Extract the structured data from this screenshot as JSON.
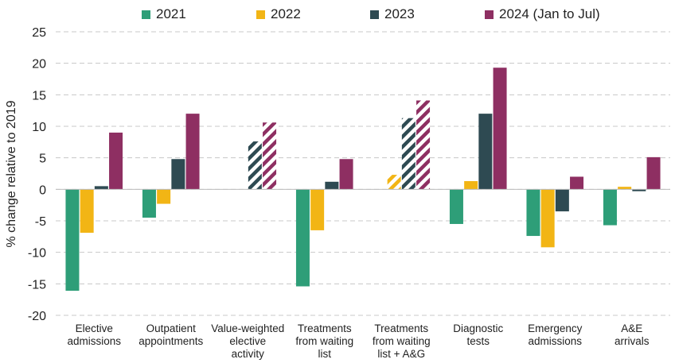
{
  "chart_data": {
    "type": "bar",
    "title": "",
    "xlabel": "",
    "ylabel": "% change relative to 2019",
    "ylim": [
      -20,
      25
    ],
    "yticks": [
      -20,
      -15,
      -10,
      -5,
      0,
      5,
      10,
      15,
      20,
      25
    ],
    "yticks_text": [
      "-20",
      "-15",
      "-10",
      "-5",
      "0",
      "5",
      "10",
      "15",
      "20",
      "25"
    ],
    "grid": true,
    "legend_position": "top",
    "categories": [
      [
        "Elective",
        "admissions"
      ],
      [
        "Outpatient",
        "appointments"
      ],
      [
        "Value-weighted",
        "elective",
        "activity"
      ],
      [
        "Treatments",
        "from waiting",
        "list"
      ],
      [
        "Treatments",
        "from waiting",
        "list + A&G"
      ],
      [
        "Diagnostic",
        "tests"
      ],
      [
        "Emergency",
        "admissions"
      ],
      [
        "A&E",
        "arrivals"
      ]
    ],
    "series": [
      {
        "name": "2021",
        "color": "#2e9e78",
        "values": [
          -16.1,
          -4.5,
          null,
          -15.4,
          null,
          -5.5,
          -7.4,
          -5.7
        ],
        "hatched": [
          false,
          false,
          false,
          false,
          false,
          false,
          false,
          false
        ]
      },
      {
        "name": "2022",
        "color": "#f2b515",
        "values": [
          -6.9,
          -2.3,
          null,
          -6.5,
          2.3,
          1.3,
          -9.2,
          0.4
        ],
        "hatched": [
          false,
          false,
          false,
          false,
          true,
          false,
          false,
          false
        ]
      },
      {
        "name": "2023",
        "color": "#2e4a52",
        "values": [
          0.5,
          4.8,
          7.6,
          1.2,
          11.3,
          12.0,
          -3.5,
          -0.3
        ],
        "hatched": [
          false,
          false,
          true,
          false,
          true,
          false,
          false,
          false
        ]
      },
      {
        "name": "2024 (Jan to Jul)",
        "color": "#8e2f62",
        "values": [
          9.0,
          12.0,
          10.6,
          4.8,
          14.1,
          19.3,
          2.0,
          5.1
        ],
        "hatched": [
          false,
          false,
          true,
          false,
          true,
          false,
          false,
          false
        ]
      }
    ]
  }
}
